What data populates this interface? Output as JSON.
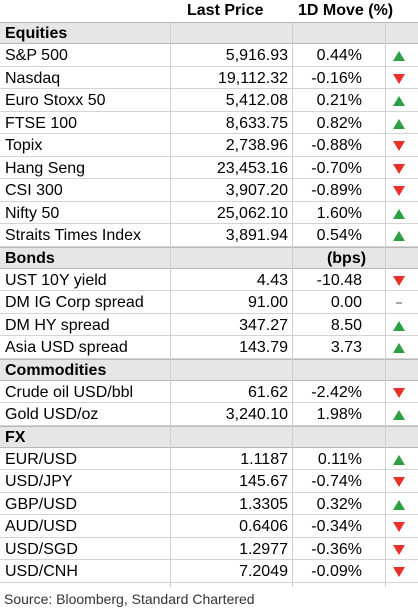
{
  "header": {
    "price": "Last Price",
    "move": "1D Move (%)"
  },
  "colors": {
    "up": "#2ca043",
    "down": "#e8312a",
    "flat": "#555555"
  },
  "sections": [
    {
      "name": "Equities",
      "unit": "",
      "rows": [
        {
          "name": "S&P 500",
          "price": "5,916.93",
          "move": "0.44%",
          "dir": "up"
        },
        {
          "name": "Nasdaq",
          "price": "19,112.32",
          "move": "-0.16%",
          "dir": "down"
        },
        {
          "name": "Euro Stoxx 50",
          "price": "5,412.08",
          "move": "0.21%",
          "dir": "up"
        },
        {
          "name": "FTSE 100",
          "price": "8,633.75",
          "move": "0.82%",
          "dir": "up"
        },
        {
          "name": "Topix",
          "price": "2,738.96",
          "move": "-0.88%",
          "dir": "down"
        },
        {
          "name": "Hang Seng",
          "price": "23,453.16",
          "move": "-0.70%",
          "dir": "down"
        },
        {
          "name": "CSI 300",
          "price": "3,907.20",
          "move": "-0.89%",
          "dir": "down"
        },
        {
          "name": "Nifty 50",
          "price": "25,062.10",
          "move": "1.60%",
          "dir": "up"
        },
        {
          "name": "Straits Times Index",
          "price": "3,891.94",
          "move": "0.54%",
          "dir": "up"
        }
      ]
    },
    {
      "name": "Bonds",
      "unit": "(bps)",
      "rows": [
        {
          "name": "UST 10Y yield",
          "price": "4.43",
          "move": "-10.48",
          "dir": "down"
        },
        {
          "name": "DM IG Corp spread",
          "price": "91.00",
          "move": "0.00",
          "dir": "flat"
        },
        {
          "name": "DM HY spread",
          "price": "347.27",
          "move": "8.50",
          "dir": "up"
        },
        {
          "name": "Asia USD spread",
          "price": "143.79",
          "move": "3.73",
          "dir": "up"
        }
      ]
    },
    {
      "name": "Commodities",
      "unit": "",
      "rows": [
        {
          "name": "Crude oil USD/bbl",
          "price": "61.62",
          "move": "-2.42%",
          "dir": "down"
        },
        {
          "name": "Gold USD/oz",
          "price": "3,240.10",
          "move": "1.98%",
          "dir": "up"
        }
      ]
    },
    {
      "name": "FX",
      "unit": "",
      "rows": [
        {
          "name": "EUR/USD",
          "price": "1.1187",
          "move": "0.11%",
          "dir": "up"
        },
        {
          "name": "USD/JPY",
          "price": "145.67",
          "move": "-0.74%",
          "dir": "down"
        },
        {
          "name": "GBP/USD",
          "price": "1.3305",
          "move": "0.32%",
          "dir": "up"
        },
        {
          "name": "AUD/USD",
          "price": "0.6406",
          "move": "-0.34%",
          "dir": "down"
        },
        {
          "name": "USD/SGD",
          "price": "1.2977",
          "move": "-0.36%",
          "dir": "down"
        },
        {
          "name": "USD/CNH",
          "price": "7.2049",
          "move": "-0.09%",
          "dir": "down"
        }
      ]
    }
  ],
  "source": "Source: Bloomberg, Standard Chartered"
}
